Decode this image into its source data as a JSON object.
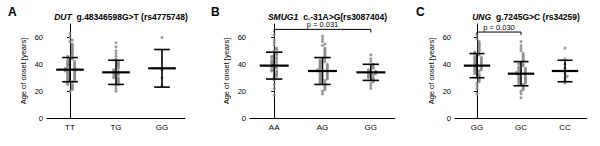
{
  "chart_data": [
    {
      "type": "scatter",
      "panel": "A",
      "gene": "DUT",
      "title": "g.48346598G>T (rs4775748)",
      "y_label": "Age of onset [years]",
      "categories": [
        "TT",
        "TG",
        "GG"
      ],
      "values": [
        [
          20,
          21,
          22,
          23,
          24,
          25,
          25,
          26,
          27,
          27,
          28,
          28,
          29,
          29,
          30,
          30,
          31,
          31,
          32,
          32,
          33,
          33,
          34,
          34,
          35,
          35,
          35,
          36,
          36,
          36,
          37,
          37,
          38,
          38,
          39,
          39,
          40,
          40,
          41,
          41,
          42,
          42,
          43,
          44,
          45,
          45,
          46,
          47,
          48,
          49,
          50,
          51,
          52,
          53,
          54,
          55,
          57,
          58,
          60,
          63
        ],
        [
          20,
          22,
          24,
          25,
          26,
          27,
          28,
          29,
          30,
          30,
          31,
          32,
          33,
          33,
          34,
          35,
          35,
          36,
          37,
          38,
          39,
          40,
          41,
          42,
          44,
          46,
          48,
          50,
          53,
          56
        ],
        [
          24,
          30,
          36,
          60
        ]
      ],
      "mean": [
        36,
        34,
        37
      ],
      "sd": [
        9,
        9,
        14
      ],
      "color": "#888888",
      "ylim": [
        0,
        70
      ],
      "yticks": [
        0,
        20,
        40,
        60
      ],
      "grid": false,
      "annotations": []
    },
    {
      "type": "scatter",
      "panel": "B",
      "gene": "SMUG1",
      "title": "c.-31A>G(rs3087404)",
      "y_label": "Age of onset [years]",
      "categories": [
        "AA",
        "AG",
        "GG"
      ],
      "values": [
        [
          17,
          22,
          25,
          28,
          30,
          31,
          32,
          33,
          34,
          35,
          35,
          36,
          37,
          38,
          38,
          39,
          40,
          40,
          41,
          42,
          42,
          43,
          44,
          45,
          45,
          46,
          47,
          48,
          50,
          51,
          52,
          54,
          56,
          58,
          62
        ],
        [
          18,
          20,
          21,
          22,
          23,
          24,
          25,
          26,
          26,
          27,
          28,
          28,
          29,
          29,
          30,
          30,
          31,
          31,
          32,
          32,
          33,
          33,
          34,
          34,
          35,
          35,
          35,
          36,
          36,
          37,
          37,
          38,
          38,
          39,
          39,
          40,
          40,
          41,
          42,
          42,
          43,
          44,
          45,
          46,
          47,
          48,
          49,
          50,
          51,
          52,
          54,
          55,
          57,
          59,
          61
        ],
        [
          22,
          24,
          26,
          27,
          28,
          29,
          30,
          30,
          31,
          32,
          32,
          33,
          33,
          34,
          34,
          35,
          35,
          36,
          37,
          38,
          39,
          40,
          42,
          44,
          47
        ]
      ],
      "mean": [
        39,
        35,
        34
      ],
      "sd": [
        10,
        10,
        6
      ],
      "color": "#888888",
      "ylim": [
        0,
        70
      ],
      "yticks": [
        0,
        20,
        40,
        60
      ],
      "grid": false,
      "annotations": [
        {
          "text": "p = 0.031",
          "from": "AA",
          "to": "GG",
          "y": 66
        }
      ]
    },
    {
      "type": "scatter",
      "panel": "C",
      "gene": "UNG",
      "title": "g.7245G>C (rs34259)",
      "y_label": "Age of onset [years]",
      "categories": [
        "GG",
        "GC",
        "CC"
      ],
      "values": [
        [
          18,
          22,
          24,
          26,
          27,
          28,
          29,
          30,
          31,
          32,
          33,
          33,
          34,
          35,
          35,
          36,
          36,
          37,
          37,
          38,
          38,
          39,
          39,
          40,
          40,
          41,
          41,
          42,
          42,
          43,
          43,
          44,
          44,
          45,
          45,
          46,
          47,
          48,
          48,
          49,
          50,
          51,
          52,
          53,
          54,
          55,
          56,
          57,
          59,
          62
        ],
        [
          15,
          18,
          20,
          21,
          22,
          23,
          24,
          25,
          25,
          26,
          26,
          27,
          27,
          28,
          28,
          29,
          29,
          30,
          30,
          31,
          31,
          32,
          32,
          33,
          33,
          33,
          34,
          34,
          35,
          35,
          36,
          36,
          37,
          37,
          38,
          39,
          40,
          40,
          41,
          42,
          43,
          44,
          45,
          46,
          47,
          48,
          50,
          52,
          54,
          57
        ],
        [
          26,
          28,
          30,
          31,
          33,
          35,
          37,
          40,
          44,
          52
        ]
      ],
      "mean": [
        39,
        33,
        35
      ],
      "sd": [
        9,
        9,
        8
      ],
      "color": "#888888",
      "ylim": [
        0,
        70
      ],
      "yticks": [
        0,
        20,
        40,
        60
      ],
      "grid": false,
      "annotations": [
        {
          "text": "p = 0.030",
          "from": "GG",
          "to": "GC",
          "y": 64
        }
      ]
    }
  ]
}
